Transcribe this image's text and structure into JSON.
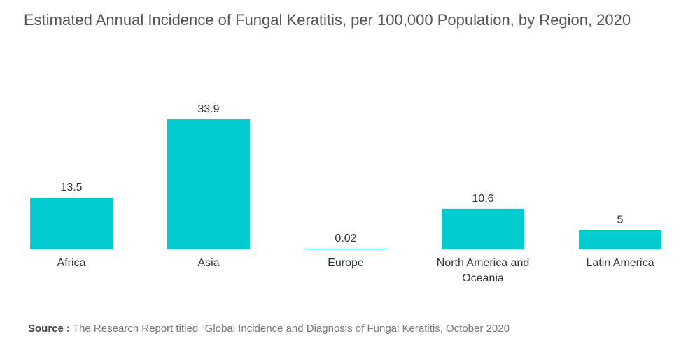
{
  "chart_data": {
    "type": "bar",
    "title": "Estimated Annual Incidence of Fungal Keratitis, per 100,000 Population, by Region, 2020",
    "categories": [
      "Africa",
      "Asia",
      "Europe",
      "North America and Oceania",
      "Latin America"
    ],
    "values": [
      13.5,
      33.9,
      0.02,
      10.6,
      5
    ],
    "value_labels": [
      "13.5",
      "33.9",
      "0.02",
      "10.6",
      "5"
    ],
    "xlabel": "",
    "ylabel": "",
    "ylim": [
      0,
      33.9
    ],
    "grid": false,
    "bar_color": "#00cccf"
  },
  "source": {
    "label": "Source :",
    "text": "The Research Report titled \"Global Incidence and Diagnosis of Fungal Keratitis, October 2020"
  }
}
